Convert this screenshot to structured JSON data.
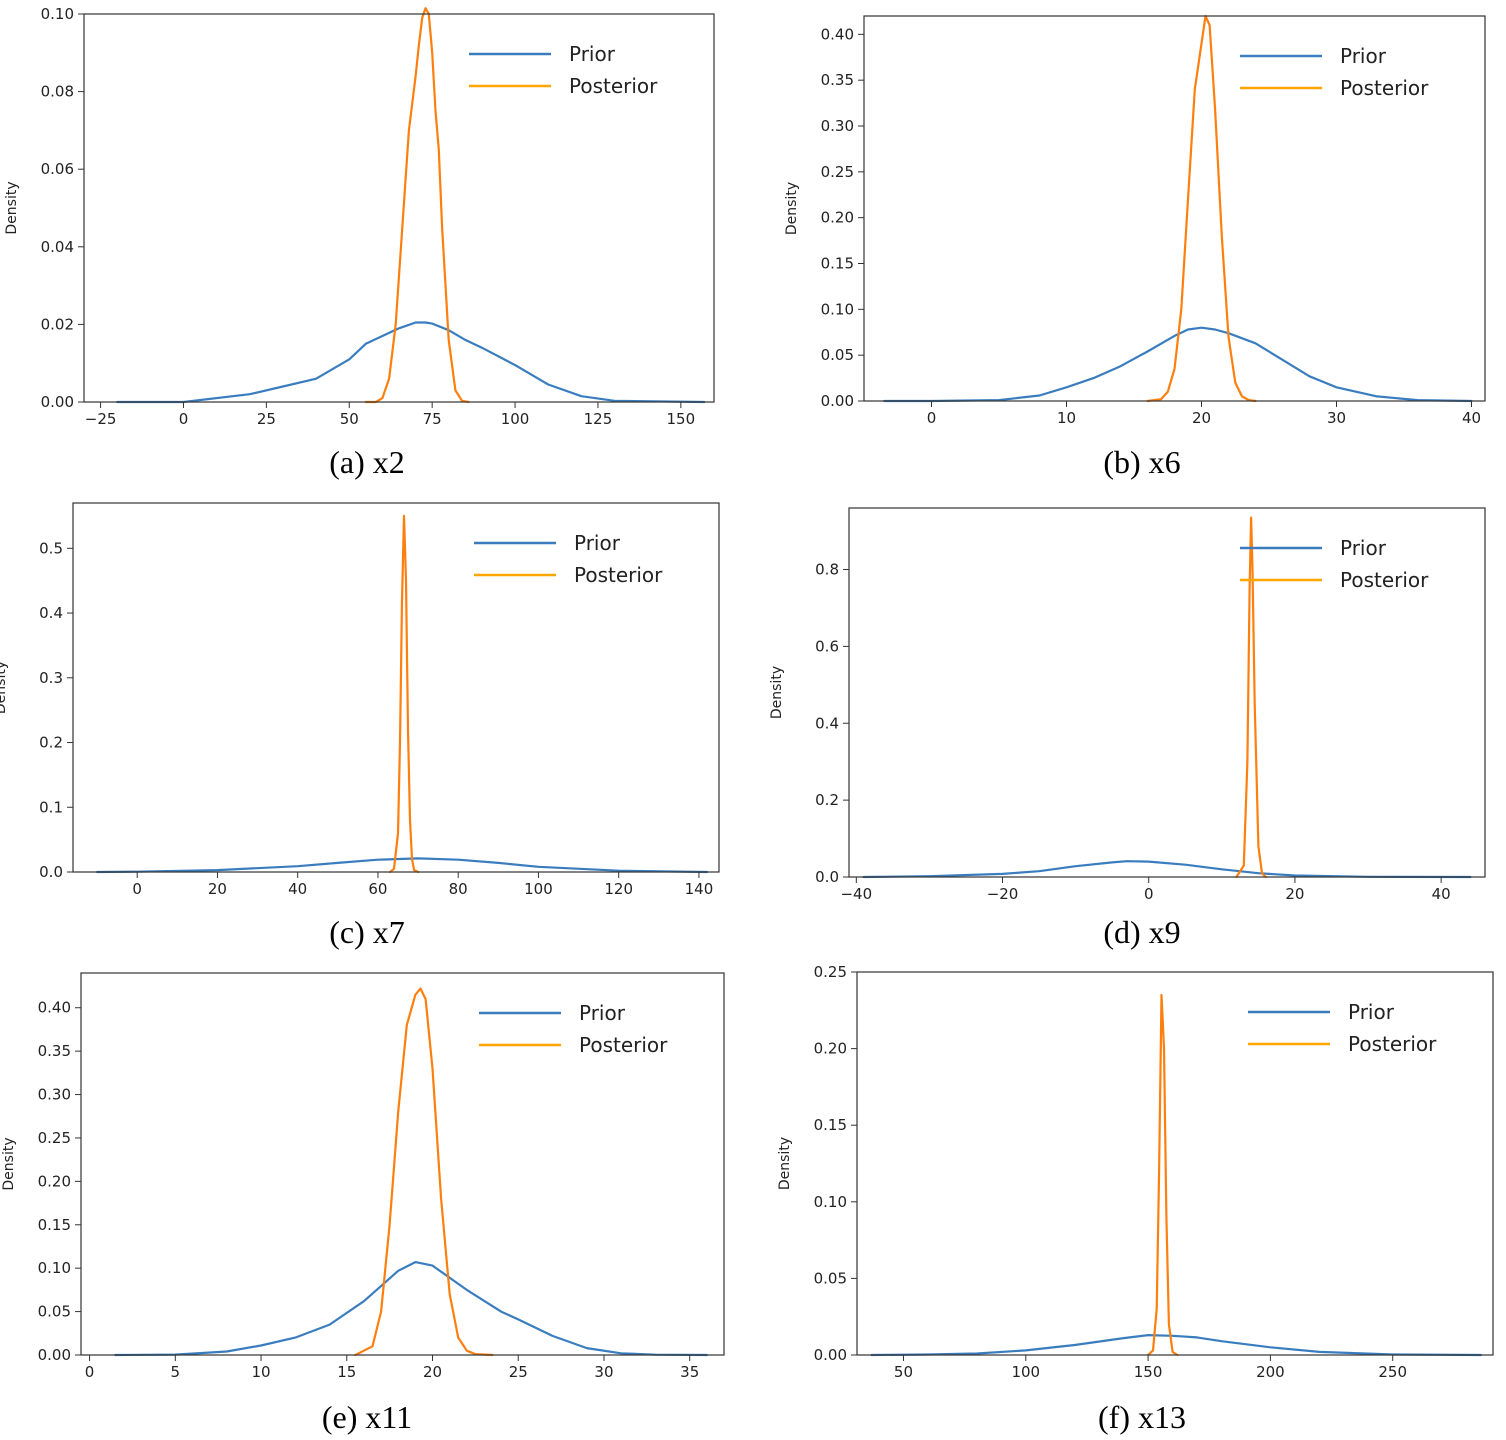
{
  "colors": {
    "prior": "#3a7dbf",
    "posterior": "#ff7f0e",
    "legend_posterior": "#ffa500",
    "frame": "#333333"
  },
  "chart_data": [
    {
      "type": "line",
      "caption": "(a) x2",
      "ylabel": "Density",
      "xlim": [
        -30,
        160
      ],
      "ylim": [
        0,
        0.1
      ],
      "xticks": [
        -25,
        0,
        25,
        50,
        75,
        100,
        125,
        150
      ],
      "xtick_labels": [
        "−25",
        "0",
        "25",
        "50",
        "75",
        "100",
        "125",
        "150"
      ],
      "yticks": [
        0,
        0.02,
        0.04,
        0.06,
        0.08,
        0.1
      ],
      "ytick_labels": [
        "0.00",
        "0.02",
        "0.04",
        "0.06",
        "0.08",
        "0.10"
      ],
      "legend": "top-right",
      "series": [
        {
          "name": "Prior",
          "x": [
            -20,
            0,
            20,
            30,
            40,
            50,
            55,
            60,
            65,
            70,
            73,
            75,
            80,
            85,
            90,
            100,
            110,
            120,
            130,
            157
          ],
          "y": [
            0,
            0,
            0.002,
            0.004,
            0.006,
            0.011,
            0.015,
            0.017,
            0.019,
            0.0205,
            0.0205,
            0.0202,
            0.0185,
            0.016,
            0.014,
            0.0095,
            0.0045,
            0.0015,
            0.0003,
            0
          ]
        },
        {
          "name": "Posterior",
          "x": [
            55,
            58,
            60,
            62,
            64,
            66,
            68,
            70,
            71,
            72,
            73,
            74,
            75,
            76,
            77,
            78,
            80,
            82,
            84,
            86
          ],
          "y": [
            0,
            0,
            0.001,
            0.006,
            0.02,
            0.045,
            0.07,
            0.084,
            0.092,
            0.099,
            0.1015,
            0.1,
            0.09,
            0.075,
            0.065,
            0.045,
            0.016,
            0.003,
            0.0003,
            0
          ]
        }
      ]
    },
    {
      "type": "line",
      "caption": "(b) x6",
      "ylabel": "Density",
      "xlim": [
        -5,
        41
      ],
      "ylim": [
        0,
        0.42
      ],
      "xticks": [
        0,
        10,
        20,
        30,
        40
      ],
      "xtick_labels": [
        "0",
        "10",
        "20",
        "30",
        "40"
      ],
      "yticks": [
        0,
        0.05,
        0.1,
        0.15,
        0.2,
        0.25,
        0.3,
        0.35,
        0.4
      ],
      "ytick_labels": [
        "0.00",
        "0.05",
        "0.10",
        "0.15",
        "0.20",
        "0.25",
        "0.30",
        "0.35",
        "0.40"
      ],
      "legend": "top-right",
      "series": [
        {
          "name": "Prior",
          "x": [
            -3.5,
            0,
            5,
            8,
            10,
            12,
            14,
            16,
            18,
            19,
            20,
            21,
            22,
            24,
            26,
            28,
            30,
            33,
            36,
            40
          ],
          "y": [
            0,
            0,
            0.001,
            0.006,
            0.015,
            0.025,
            0.038,
            0.054,
            0.071,
            0.078,
            0.08,
            0.078,
            0.074,
            0.063,
            0.045,
            0.027,
            0.015,
            0.005,
            0.001,
            0
          ]
        },
        {
          "name": "Posterior",
          "x": [
            16,
            17,
            17.5,
            18,
            18.5,
            19,
            19.5,
            20,
            20.3,
            20.6,
            21,
            21.5,
            22,
            22.5,
            23,
            23.5,
            24
          ],
          "y": [
            0,
            0.002,
            0.01,
            0.035,
            0.1,
            0.22,
            0.34,
            0.39,
            0.42,
            0.41,
            0.32,
            0.18,
            0.07,
            0.02,
            0.005,
            0.001,
            0
          ]
        }
      ]
    },
    {
      "type": "line",
      "caption": "(c) x7",
      "ylabel": "Density",
      "xlim": [
        -16,
        145
      ],
      "ylim": [
        0,
        0.57
      ],
      "xticks": [
        0,
        20,
        40,
        60,
        80,
        100,
        120,
        140
      ],
      "xtick_labels": [
        "0",
        "20",
        "40",
        "60",
        "80",
        "100",
        "120",
        "140"
      ],
      "yticks": [
        0,
        0.1,
        0.2,
        0.3,
        0.4,
        0.5
      ],
      "ytick_labels": [
        "0.0",
        "0.1",
        "0.2",
        "0.3",
        "0.4",
        "0.5"
      ],
      "legend": "top-right",
      "series": [
        {
          "name": "Prior",
          "x": [
            -10,
            0,
            20,
            40,
            50,
            60,
            70,
            80,
            90,
            100,
            120,
            142
          ],
          "y": [
            0,
            0.0005,
            0.003,
            0.009,
            0.014,
            0.019,
            0.021,
            0.019,
            0.014,
            0.008,
            0.002,
            0
          ]
        },
        {
          "name": "Posterior",
          "x": [
            63,
            64,
            65,
            65.5,
            66,
            66.5,
            67,
            67.5,
            68,
            68.5,
            69,
            70
          ],
          "y": [
            0,
            0.005,
            0.06,
            0.2,
            0.42,
            0.55,
            0.45,
            0.22,
            0.08,
            0.02,
            0.003,
            0
          ]
        }
      ]
    },
    {
      "type": "line",
      "caption": "(d) x9",
      "ylabel": "Density",
      "xlim": [
        -41,
        46
      ],
      "ylim": [
        0,
        0.96
      ],
      "xticks": [
        -40,
        -20,
        0,
        20,
        40
      ],
      "xtick_labels": [
        "−40",
        "−20",
        "0",
        "20",
        "40"
      ],
      "yticks": [
        0,
        0.2,
        0.4,
        0.6,
        0.8
      ],
      "ytick_labels": [
        "0.0",
        "0.2",
        "0.4",
        "0.6",
        "0.8"
      ],
      "legend": "top-right",
      "series": [
        {
          "name": "Prior",
          "x": [
            -39,
            -30,
            -20,
            -15,
            -10,
            -5,
            -3,
            0,
            5,
            10,
            15,
            20,
            30,
            44
          ],
          "y": [
            0,
            0.002,
            0.008,
            0.015,
            0.028,
            0.038,
            0.041,
            0.04,
            0.032,
            0.02,
            0.01,
            0.004,
            0.0005,
            0
          ]
        },
        {
          "name": "Posterior",
          "x": [
            12,
            13,
            13.5,
            13.8,
            14,
            14.2,
            14.5,
            15,
            15.5,
            16
          ],
          "y": [
            0,
            0.03,
            0.3,
            0.75,
            0.935,
            0.8,
            0.45,
            0.08,
            0.01,
            0
          ]
        }
      ]
    },
    {
      "type": "line",
      "caption": "(e) x11",
      "ylabel": "Density",
      "xlim": [
        -0.5,
        37
      ],
      "ylim": [
        0,
        0.44
      ],
      "xticks": [
        0,
        5,
        10,
        15,
        20,
        25,
        30,
        35
      ],
      "xtick_labels": [
        "0",
        "5",
        "10",
        "15",
        "20",
        "25",
        "30",
        "35"
      ],
      "yticks": [
        0,
        0.05,
        0.1,
        0.15,
        0.2,
        0.25,
        0.3,
        0.35,
        0.4
      ],
      "ytick_labels": [
        "0.00",
        "0.05",
        "0.10",
        "0.15",
        "0.20",
        "0.25",
        "0.30",
        "0.35",
        "0.40"
      ],
      "legend": "top-right",
      "series": [
        {
          "name": "Prior",
          "x": [
            1.5,
            5,
            8,
            10,
            12,
            14,
            16,
            18,
            19,
            20,
            22,
            24,
            25,
            27,
            29,
            31,
            33,
            36
          ],
          "y": [
            0,
            0.0005,
            0.004,
            0.011,
            0.02,
            0.035,
            0.062,
            0.097,
            0.107,
            0.103,
            0.075,
            0.05,
            0.041,
            0.022,
            0.008,
            0.002,
            0.0003,
            0
          ]
        },
        {
          "name": "Posterior",
          "x": [
            15.5,
            16.5,
            17,
            17.5,
            18,
            18.5,
            19,
            19.3,
            19.6,
            20,
            20.5,
            21,
            21.5,
            22,
            22.5,
            23.5
          ],
          "y": [
            0,
            0.01,
            0.05,
            0.15,
            0.28,
            0.38,
            0.415,
            0.422,
            0.41,
            0.33,
            0.18,
            0.07,
            0.02,
            0.005,
            0.001,
            0
          ]
        }
      ]
    },
    {
      "type": "line",
      "caption": "(f) x13",
      "ylabel": "Density",
      "xlim": [
        31,
        291
      ],
      "ylim": [
        0,
        0.25
      ],
      "xticks": [
        50,
        100,
        150,
        200,
        250
      ],
      "xtick_labels": [
        "50",
        "100",
        "150",
        "200",
        "250"
      ],
      "yticks": [
        0,
        0.05,
        0.1,
        0.15,
        0.2,
        0.25
      ],
      "ytick_labels": [
        "0.00",
        "0.05",
        "0.10",
        "0.15",
        "0.20",
        "0.25"
      ],
      "legend": "top-right",
      "series": [
        {
          "name": "Prior",
          "x": [
            37,
            60,
            80,
            100,
            120,
            140,
            150,
            160,
            170,
            180,
            200,
            220,
            250,
            286
          ],
          "y": [
            0,
            0.0003,
            0.001,
            0.003,
            0.0065,
            0.011,
            0.013,
            0.0125,
            0.0115,
            0.009,
            0.005,
            0.002,
            0.0003,
            0
          ]
        },
        {
          "name": "Posterior",
          "x": [
            150,
            152,
            153.5,
            154.5,
            155.5,
            156.5,
            157.5,
            158.5,
            160,
            162
          ],
          "y": [
            0,
            0.003,
            0.03,
            0.12,
            0.235,
            0.2,
            0.09,
            0.02,
            0.002,
            0
          ]
        }
      ]
    }
  ]
}
